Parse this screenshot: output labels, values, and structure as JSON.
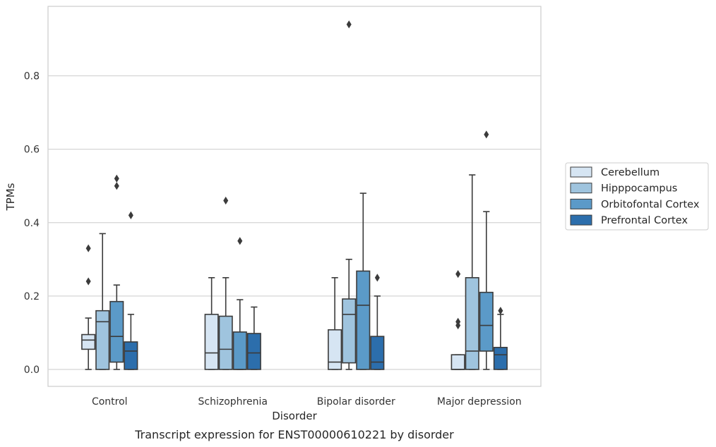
{
  "chart_data": {
    "type": "boxplot",
    "caption": "Transcript expression for ENST00000610221 by disorder",
    "xlabel": "Disorder",
    "ylabel": "TPMs",
    "ylim": [
      -0.045,
      0.995
    ],
    "yticks": [
      0.0,
      0.2,
      0.4,
      0.6,
      0.8
    ],
    "ytick_labels": [
      "0.0",
      "0.2",
      "0.4",
      "0.6",
      "0.8"
    ],
    "grid": "horizontal",
    "legend_position": "right",
    "categories": [
      "Control",
      "Schizophrenia",
      "Bipolar disorder",
      "Major depression"
    ],
    "series": [
      {
        "name": "Cerebellum",
        "color": "#d6e5f3",
        "boxes": [
          {
            "whislo": 0.0,
            "q1": 0.055,
            "med": 0.08,
            "q3": 0.095,
            "whishi": 0.14,
            "fliers": [
              0.24,
              0.33
            ]
          },
          {
            "whislo": 0.0,
            "q1": 0.0,
            "med": 0.045,
            "q3": 0.15,
            "whishi": 0.25,
            "fliers": []
          },
          {
            "whislo": 0.0,
            "q1": 0.0,
            "med": 0.02,
            "q3": 0.108,
            "whishi": 0.25,
            "fliers": []
          },
          {
            "whislo": 0.0,
            "q1": 0.0,
            "med": 0.0,
            "q3": 0.04,
            "whishi": 0.04,
            "fliers": [
              0.12,
              0.13,
              0.26
            ]
          }
        ]
      },
      {
        "name": "Hipppocampus",
        "color": "#9fc4de",
        "boxes": [
          {
            "whislo": 0.0,
            "q1": 0.0,
            "med": 0.13,
            "q3": 0.16,
            "whishi": 0.37,
            "fliers": []
          },
          {
            "whislo": 0.0,
            "q1": 0.0,
            "med": 0.055,
            "q3": 0.145,
            "whishi": 0.25,
            "fliers": [
              0.46
            ]
          },
          {
            "whislo": 0.0,
            "q1": 0.018,
            "med": 0.15,
            "q3": 0.192,
            "whishi": 0.3,
            "fliers": [
              0.94
            ]
          },
          {
            "whislo": 0.0,
            "q1": 0.0,
            "med": 0.05,
            "q3": 0.25,
            "whishi": 0.53,
            "fliers": []
          }
        ]
      },
      {
        "name": "Orbitofontal Cortex",
        "color": "#5b9ac8",
        "boxes": [
          {
            "whislo": 0.0,
            "q1": 0.02,
            "med": 0.09,
            "q3": 0.185,
            "whishi": 0.23,
            "fliers": [
              0.5,
              0.52
            ]
          },
          {
            "whislo": 0.0,
            "q1": 0.0,
            "med": 0.0,
            "q3": 0.102,
            "whishi": 0.19,
            "fliers": [
              0.35
            ]
          },
          {
            "whislo": 0.0,
            "q1": 0.0,
            "med": 0.175,
            "q3": 0.268,
            "whishi": 0.48,
            "fliers": []
          },
          {
            "whislo": 0.0,
            "q1": 0.05,
            "med": 0.12,
            "q3": 0.21,
            "whishi": 0.43,
            "fliers": [
              0.64
            ]
          }
        ]
      },
      {
        "name": "Prefrontal Cortex",
        "color": "#2c6eac",
        "boxes": [
          {
            "whislo": 0.0,
            "q1": 0.0,
            "med": 0.05,
            "q3": 0.075,
            "whishi": 0.15,
            "fliers": [
              0.42
            ]
          },
          {
            "whislo": 0.0,
            "q1": 0.0,
            "med": 0.045,
            "q3": 0.098,
            "whishi": 0.17,
            "fliers": []
          },
          {
            "whislo": 0.0,
            "q1": 0.0,
            "med": 0.02,
            "q3": 0.09,
            "whishi": 0.2,
            "fliers": [
              0.25
            ]
          },
          {
            "whislo": 0.0,
            "q1": 0.0,
            "med": 0.04,
            "q3": 0.06,
            "whishi": 0.15,
            "fliers": [
              0.16
            ]
          }
        ]
      }
    ]
  }
}
